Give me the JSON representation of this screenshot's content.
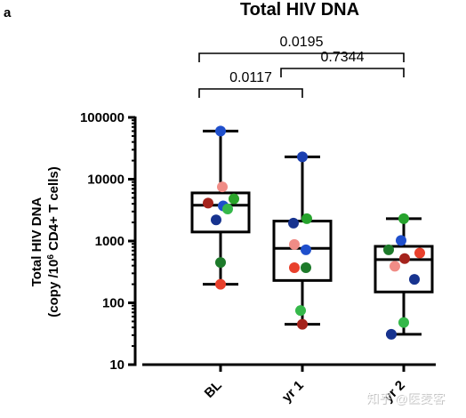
{
  "panel_label": "a",
  "watermark": "知乎 @医麦客",
  "chart_data": {
    "type": "boxplot",
    "title": "Total HIV DNA",
    "ylabel_line1": "Total HIV DNA",
    "ylabel_line2_prefix": "(copy /10",
    "ylabel_line2_sup": "6",
    "ylabel_line2_suffix": " CD4+ T cells)",
    "yscale": "log",
    "ylim": [
      10,
      100000
    ],
    "yticks": [
      "10",
      "100",
      "1000",
      "10000",
      "100000"
    ],
    "categories": [
      "BL",
      "yr 1",
      "yr 2"
    ],
    "boxes": [
      {
        "min": 200,
        "q1": 1400,
        "median": 3800,
        "q3": 6000,
        "max": 60000
      },
      {
        "min": 45,
        "q1": 230,
        "median": 760,
        "q3": 2100,
        "max": 23000
      },
      {
        "min": 31,
        "q1": 150,
        "median": 500,
        "q3": 820,
        "max": 2300
      }
    ],
    "points": [
      [
        {
          "value": 60000,
          "color": "#1f4fcc",
          "dx": 0
        },
        {
          "value": 7500,
          "color": "#f08c86",
          "dx": 2
        },
        {
          "value": 4800,
          "color": "#2aa32a",
          "dx": 15
        },
        {
          "value": 4100,
          "color": "#a5231c",
          "dx": -14
        },
        {
          "value": 3700,
          "color": "#1f4fcc",
          "dx": 3
        },
        {
          "value": 3300,
          "color": "#35b84a",
          "dx": 8
        },
        {
          "value": 2200,
          "color": "#17338f",
          "dx": -5
        },
        {
          "value": 450,
          "color": "#1d7a2a",
          "dx": 0
        },
        {
          "value": 200,
          "color": "#e8402c",
          "dx": 0
        }
      ],
      [
        {
          "value": 23000,
          "color": "#1a3fb0",
          "dx": 0
        },
        {
          "value": 2300,
          "color": "#27a32d",
          "dx": 5
        },
        {
          "value": 1950,
          "color": "#17338f",
          "dx": -10
        },
        {
          "value": 880,
          "color": "#f08c86",
          "dx": -9
        },
        {
          "value": 720,
          "color": "#1f4fcc",
          "dx": 4
        },
        {
          "value": 370,
          "color": "#e8402c",
          "dx": -9
        },
        {
          "value": 370,
          "color": "#1d7a2a",
          "dx": 4
        },
        {
          "value": 75,
          "color": "#35b84a",
          "dx": -2
        },
        {
          "value": 45,
          "color": "#a5231c",
          "dx": 0
        }
      ],
      [
        {
          "value": 2300,
          "color": "#27a32d",
          "dx": 0
        },
        {
          "value": 1020,
          "color": "#1f4fcc",
          "dx": -3
        },
        {
          "value": 720,
          "color": "#1d7a2a",
          "dx": -17
        },
        {
          "value": 640,
          "color": "#e8402c",
          "dx": 18
        },
        {
          "value": 520,
          "color": "#a5231c",
          "dx": 1
        },
        {
          "value": 390,
          "color": "#f08c86",
          "dx": -10
        },
        {
          "value": 240,
          "color": "#17338f",
          "dx": 12
        },
        {
          "value": 48,
          "color": "#35b84a",
          "dx": 0
        },
        {
          "value": 31,
          "color": "#17338f",
          "dx": -14
        }
      ]
    ],
    "comparisons": [
      {
        "from": 0,
        "to": 2,
        "label": "0.0195",
        "level": 2
      },
      {
        "from": 1,
        "to": 2,
        "label": "0.7344",
        "level": 1
      },
      {
        "from": 0,
        "to": 1,
        "label": "0.0117",
        "level": 0
      }
    ]
  }
}
